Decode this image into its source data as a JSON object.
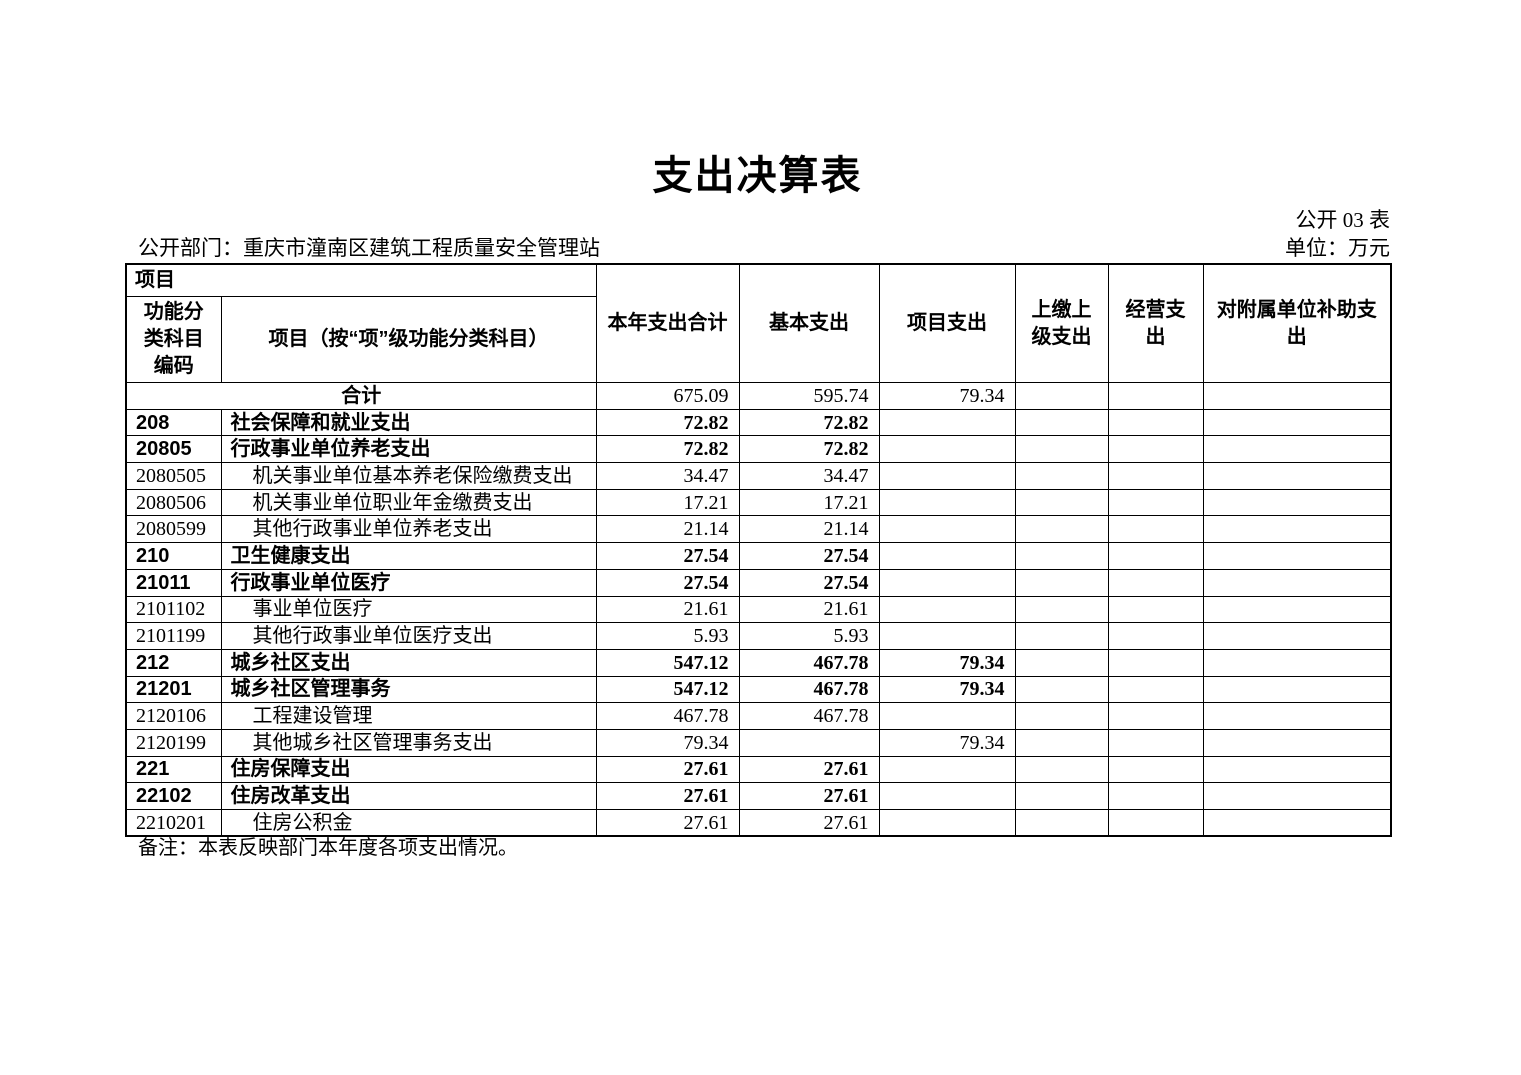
{
  "page": {
    "title": "支出决算表",
    "table_code": "公开 03 表",
    "department": "公开部门：重庆市潼南区建筑工程质量安全管理站",
    "unit": "单位：万元",
    "note": "备注：本表反映部门本年度各项支出情况。"
  },
  "table": {
    "header": {
      "item_group": "项目",
      "code_label": "功能分类科目编码",
      "item_label": "项目（按“项”级功能分类科目）",
      "value_columns": [
        "本年支出合计",
        "基本支出",
        "项目支出",
        "上缴上级支出",
        "经营支出",
        "对附属单位补助支出"
      ]
    },
    "total_row": {
      "label": "合计",
      "values": [
        "675.09",
        "595.74",
        "79.34",
        "",
        "",
        ""
      ]
    },
    "rows": [
      {
        "code": "208",
        "name": "社会保障和就业支出",
        "level": "category",
        "values": [
          "72.82",
          "72.82",
          "",
          "",
          "",
          ""
        ]
      },
      {
        "code": "20805",
        "name": "行政事业单位养老支出",
        "level": "category",
        "values": [
          "72.82",
          "72.82",
          "",
          "",
          "",
          ""
        ]
      },
      {
        "code": "2080505",
        "name": "机关事业单位基本养老保险缴费支出",
        "level": "detail",
        "values": [
          "34.47",
          "34.47",
          "",
          "",
          "",
          ""
        ]
      },
      {
        "code": "2080506",
        "name": "机关事业单位职业年金缴费支出",
        "level": "detail",
        "values": [
          "17.21",
          "17.21",
          "",
          "",
          "",
          ""
        ]
      },
      {
        "code": "2080599",
        "name": "其他行政事业单位养老支出",
        "level": "detail",
        "values": [
          "21.14",
          "21.14",
          "",
          "",
          "",
          ""
        ]
      },
      {
        "code": "210",
        "name": "卫生健康支出",
        "level": "category",
        "values": [
          "27.54",
          "27.54",
          "",
          "",
          "",
          ""
        ]
      },
      {
        "code": "21011",
        "name": "行政事业单位医疗",
        "level": "category",
        "values": [
          "27.54",
          "27.54",
          "",
          "",
          "",
          ""
        ]
      },
      {
        "code": "2101102",
        "name": "事业单位医疗",
        "level": "detail",
        "values": [
          "21.61",
          "21.61",
          "",
          "",
          "",
          ""
        ]
      },
      {
        "code": "2101199",
        "name": "其他行政事业单位医疗支出",
        "level": "detail",
        "values": [
          "5.93",
          "5.93",
          "",
          "",
          "",
          ""
        ]
      },
      {
        "code": "212",
        "name": "城乡社区支出",
        "level": "category",
        "values": [
          "547.12",
          "467.78",
          "79.34",
          "",
          "",
          ""
        ]
      },
      {
        "code": "21201",
        "name": "城乡社区管理事务",
        "level": "category",
        "values": [
          "547.12",
          "467.78",
          "79.34",
          "",
          "",
          ""
        ]
      },
      {
        "code": "2120106",
        "name": "工程建设管理",
        "level": "detail",
        "values": [
          "467.78",
          "467.78",
          "",
          "",
          "",
          ""
        ]
      },
      {
        "code": "2120199",
        "name": "其他城乡社区管理事务支出",
        "level": "detail",
        "values": [
          "79.34",
          "",
          "79.34",
          "",
          "",
          ""
        ]
      },
      {
        "code": "221",
        "name": "住房保障支出",
        "level": "category",
        "values": [
          "27.61",
          "27.61",
          "",
          "",
          "",
          ""
        ]
      },
      {
        "code": "22102",
        "name": "住房改革支出",
        "level": "category",
        "values": [
          "27.61",
          "27.61",
          "",
          "",
          "",
          ""
        ]
      },
      {
        "code": "2210201",
        "name": "住房公积金",
        "level": "detail",
        "values": [
          "27.61",
          "27.61",
          "",
          "",
          "",
          ""
        ]
      }
    ]
  }
}
